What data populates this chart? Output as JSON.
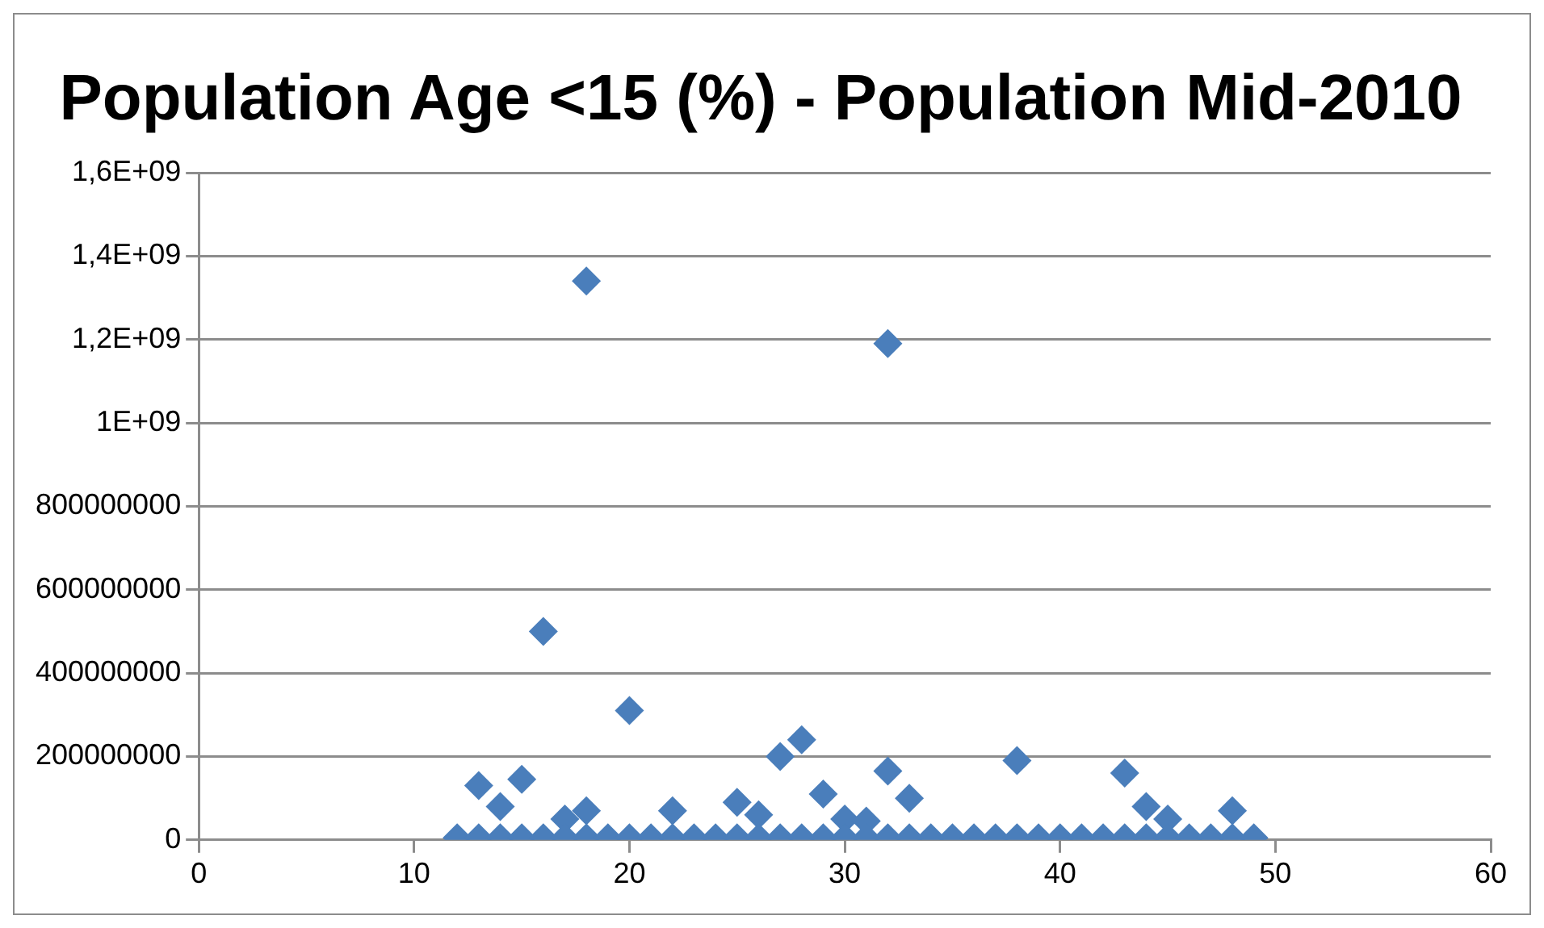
{
  "chart_data": {
    "type": "scatter",
    "title": "Population Age <15 (%) - Population Mid-2010",
    "color": "#4a7ebb",
    "marker": "diamond",
    "grid": "y",
    "legend": false,
    "x": [
      18,
      32,
      16,
      20,
      28,
      27,
      38,
      32,
      43,
      15,
      13,
      29,
      33,
      25,
      44,
      14,
      48,
      22,
      18,
      17,
      26,
      30,
      31,
      45,
      12,
      13,
      14,
      15,
      16,
      17,
      18,
      19,
      20,
      21,
      22,
      23,
      24,
      25,
      26,
      27,
      28,
      29,
      30,
      31,
      32,
      33,
      34,
      35,
      36,
      37,
      38,
      39,
      40,
      41,
      42,
      43,
      44,
      45,
      46,
      47,
      48,
      49
    ],
    "values": [
      1340000000,
      1190000000,
      500000000,
      310000000,
      240000000,
      200000000,
      190000000,
      165000000,
      160000000,
      145000000,
      130000000,
      110000000,
      100000000,
      90000000,
      80000000,
      80000000,
      70000000,
      70000000,
      70000000,
      50000000,
      60000000,
      50000000,
      45000000,
      50000000,
      5000000,
      5000000,
      5000000,
      5000000,
      5000000,
      5000000,
      5000000,
      5000000,
      5000000,
      5000000,
      5000000,
      5000000,
      5000000,
      5000000,
      5000000,
      5000000,
      5000000,
      5000000,
      5000000,
      5000000,
      5000000,
      5000000,
      5000000,
      5000000,
      5000000,
      5000000,
      5000000,
      5000000,
      5000000,
      5000000,
      5000000,
      5000000,
      5000000,
      5000000,
      5000000,
      5000000,
      5000000,
      5000000
    ],
    "xlim": [
      0,
      60
    ],
    "xticks": [
      0,
      10,
      20,
      30,
      40,
      50,
      60
    ],
    "ylim": [
      0,
      1600000000
    ],
    "yticks": [
      0,
      200000000,
      400000000,
      600000000,
      800000000,
      {
        "value": 1000000000,
        "label": "1E+09"
      },
      {
        "value": 1200000000,
        "label": "1,2E+09"
      },
      {
        "value": 1400000000,
        "label": "1,4E+09"
      },
      {
        "value": 1600000000,
        "label": "1,6E+09"
      }
    ]
  }
}
